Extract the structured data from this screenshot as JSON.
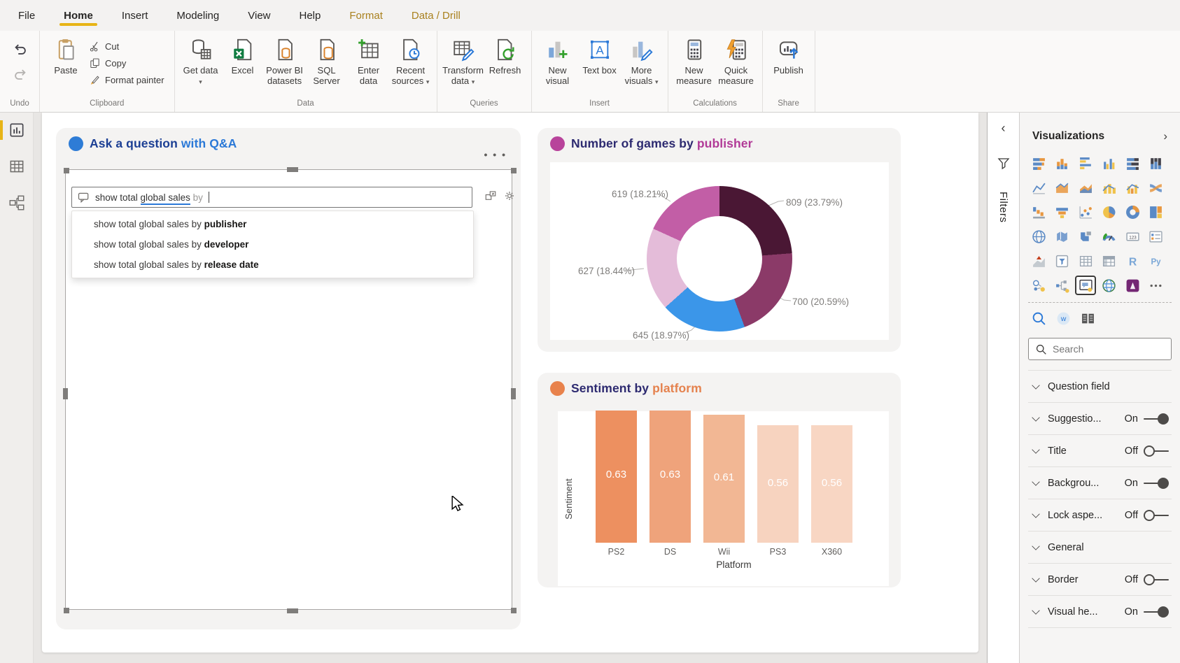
{
  "ribbon": {
    "active_tab": "Home",
    "tabs": [
      {
        "label": "File"
      },
      {
        "label": "Home",
        "active": true
      },
      {
        "label": "Insert"
      },
      {
        "label": "Modeling"
      },
      {
        "label": "View"
      },
      {
        "label": "Help"
      },
      {
        "label": "Format",
        "contextual": true
      },
      {
        "label": "Data / Drill",
        "contextual": true
      }
    ],
    "groups": [
      {
        "label": "Undo",
        "buttons": [
          {
            "name": "undo-button",
            "kind": "undo",
            "size": "icon"
          },
          {
            "name": "redo-button",
            "kind": "redo",
            "size": "icon"
          }
        ]
      },
      {
        "label": "Clipboard",
        "buttons": [
          {
            "name": "paste-button",
            "label": "Paste",
            "kind": "paste",
            "size": "big"
          },
          {
            "name": "cut-button",
            "label": "Cut",
            "kind": "cut",
            "size": "small"
          },
          {
            "name": "copy-button",
            "label": "Copy",
            "kind": "copy",
            "size": "small"
          },
          {
            "name": "format-painter-button",
            "label": "Format painter",
            "kind": "brush",
            "size": "small"
          }
        ]
      },
      {
        "label": "Data",
        "buttons": [
          {
            "name": "get-data-button",
            "label": "Get data",
            "kind": "getdata",
            "size": "big",
            "menu": true
          },
          {
            "name": "excel-button",
            "label": "Excel",
            "kind": "excel",
            "size": "big"
          },
          {
            "name": "power-bi-datasets-button",
            "label": "Power BI datasets",
            "kind": "pbids",
            "size": "big"
          },
          {
            "name": "sql-server-button",
            "label": "SQL Server",
            "kind": "sql",
            "size": "big"
          },
          {
            "name": "enter-data-button",
            "label": "Enter data",
            "kind": "enterdata",
            "size": "big"
          },
          {
            "name": "recent-sources-button",
            "label": "Recent sources",
            "kind": "recent",
            "size": "big",
            "menu": true
          }
        ]
      },
      {
        "label": "Queries",
        "buttons": [
          {
            "name": "transform-data-button",
            "label": "Transform data",
            "kind": "transform",
            "size": "big",
            "menu": true
          },
          {
            "name": "refresh-button",
            "label": "Refresh",
            "kind": "refresh",
            "size": "big"
          }
        ]
      },
      {
        "label": "Insert",
        "buttons": [
          {
            "name": "new-visual-button",
            "label": "New visual",
            "kind": "newvisual",
            "size": "big"
          },
          {
            "name": "text-box-button",
            "label": "Text box",
            "kind": "textbox",
            "size": "big"
          },
          {
            "name": "more-visuals-button",
            "label": "More visuals",
            "kind": "morevisuals",
            "size": "big",
            "menu": true
          }
        ]
      },
      {
        "label": "Calculations",
        "buttons": [
          {
            "name": "new-measure-button",
            "label": "New measure",
            "kind": "calc",
            "size": "big"
          },
          {
            "name": "quick-measure-button",
            "label": "Quick measure",
            "kind": "quickcalc",
            "size": "big"
          }
        ]
      },
      {
        "label": "Share",
        "buttons": [
          {
            "name": "publish-button",
            "label": "Publish",
            "kind": "publish",
            "size": "big"
          }
        ]
      }
    ]
  },
  "left_rail": [
    {
      "name": "report-view-button",
      "kind": "report",
      "active": true
    },
    {
      "name": "data-view-button",
      "kind": "dataview"
    },
    {
      "name": "model-view-button",
      "kind": "modelview"
    }
  ],
  "qna": {
    "title_main": "Ask a question",
    "title_accent": "with Q&A",
    "accent_color": "#2b79d7",
    "bullet_color": "#2e7cd6",
    "more_options": "• • •",
    "input_segments": [
      {
        "text": "show total ",
        "style": "normal"
      },
      {
        "text": "global sales",
        "style": "recognized"
      },
      {
        "text": " by ",
        "style": "pending"
      }
    ],
    "suggestions": [
      {
        "prefix": "show total global sales by ",
        "term": "publisher"
      },
      {
        "prefix": "show total global sales by ",
        "term": "developer"
      },
      {
        "prefix": "show total global sales by ",
        "term": "release date"
      }
    ]
  },
  "chart_data": [
    {
      "type": "donut",
      "title_main": "Number of games by",
      "title_accent": "publisher",
      "accent_color": "#b13a97",
      "bullet_color": "#b8439b",
      "values": [
        809,
        700,
        645,
        627,
        619
      ],
      "percents": [
        "23.79%",
        "20.59%",
        "18.97%",
        "18.44%",
        "18.21%"
      ],
      "label_format": "value (percent)",
      "colors": [
        "#4a1734",
        "#8b3a68",
        "#3b96e9",
        "#e4bcd9",
        "#c25ea6"
      ],
      "legend": "none"
    },
    {
      "type": "bar",
      "title_main": "Sentiment by",
      "title_accent": "platform",
      "accent_color": "#e5824e",
      "bullet_color": "#e8824c",
      "categories": [
        "PS2",
        "DS",
        "Wii",
        "PS3",
        "X360"
      ],
      "values": [
        0.63,
        0.63,
        0.61,
        0.56,
        0.56
      ],
      "colors": [
        "#ed9060",
        "#efa37b",
        "#f2b794",
        "#f7d3bf",
        "#f8d6c3"
      ],
      "xlabel": "Platform",
      "ylabel": "Sentiment",
      "ylim": [
        0,
        0.7
      ],
      "grid": false,
      "value_labels": true
    }
  ],
  "filters_panel": {
    "label": "Filters"
  },
  "viz_panel": {
    "title": "Visualizations",
    "search_placeholder": "Search",
    "grid_icons": [
      {
        "name": "stacked-bar-chart-icon",
        "kind": "bar_s"
      },
      {
        "name": "stacked-column-chart-icon",
        "kind": "col_s"
      },
      {
        "name": "clustered-bar-chart-icon",
        "kind": "bar_c"
      },
      {
        "name": "clustered-column-chart-icon",
        "kind": "col_c"
      },
      {
        "name": "100-stacked-bar-chart-icon",
        "kind": "bar_100"
      },
      {
        "name": "100-stacked-column-chart-icon",
        "kind": "col_100"
      },
      {
        "name": "line-chart-icon",
        "kind": "line"
      },
      {
        "name": "area-chart-icon",
        "kind": "area"
      },
      {
        "name": "stacked-area-chart-icon",
        "kind": "area_s"
      },
      {
        "name": "line-and-stacked-column-chart-icon",
        "kind": "combo1"
      },
      {
        "name": "line-and-clustered-column-chart-icon",
        "kind": "combo2"
      },
      {
        "name": "ribbon-chart-icon",
        "kind": "ribbonc"
      },
      {
        "name": "waterfall-chart-icon",
        "kind": "waterfall"
      },
      {
        "name": "funnel-chart-icon",
        "kind": "funnel"
      },
      {
        "name": "scatter-chart-icon",
        "kind": "scatter"
      },
      {
        "name": "pie-chart-icon",
        "kind": "pie"
      },
      {
        "name": "donut-chart-icon",
        "kind": "donutc"
      },
      {
        "name": "treemap-icon",
        "kind": "treemap"
      },
      {
        "name": "map-icon",
        "kind": "map"
      },
      {
        "name": "filled-map-icon",
        "kind": "map_filled"
      },
      {
        "name": "shape-map-icon",
        "kind": "map_shape"
      },
      {
        "name": "gauge-icon",
        "kind": "gauge"
      },
      {
        "name": "card-icon",
        "kind": "cardic"
      },
      {
        "name": "multi-row-card-icon",
        "kind": "card_multi"
      },
      {
        "name": "kpi-icon",
        "kind": "kpi"
      },
      {
        "name": "slicer-icon",
        "kind": "slicer"
      },
      {
        "name": "table-icon",
        "kind": "tableic"
      },
      {
        "name": "matrix-icon",
        "kind": "matrix"
      },
      {
        "name": "r-script-visual-icon",
        "kind": "r"
      },
      {
        "name": "python-visual-icon",
        "kind": "py"
      },
      {
        "name": "key-influencers-icon",
        "kind": "influencers"
      },
      {
        "name": "decomposition-tree-icon",
        "kind": "decomp"
      },
      {
        "name": "qna-visual-icon",
        "kind": "qna",
        "selected": true
      },
      {
        "name": "get-more-visuals-icon",
        "kind": "globe"
      },
      {
        "name": "power-apps-icon",
        "kind": "powerapps"
      },
      {
        "name": "more-visual-options-icon",
        "kind": "dots"
      }
    ],
    "extra_icons": [
      {
        "name": "search-visual-icon",
        "kind": "search_small"
      },
      {
        "name": "word-cloud-visual-icon",
        "kind": "w_small"
      },
      {
        "name": "paginated-report-icon",
        "kind": "paginated"
      }
    ],
    "sections": [
      {
        "label": "Question field",
        "toggle": null
      },
      {
        "label": "Suggestio...",
        "toggle": "On"
      },
      {
        "label": "Title",
        "toggle": "Off"
      },
      {
        "label": "Backgrou...",
        "toggle": "On"
      },
      {
        "label": "Lock aspe...",
        "toggle": "Off"
      },
      {
        "label": "General",
        "toggle": null
      },
      {
        "label": "Border",
        "toggle": "Off"
      },
      {
        "label": "Visual he...",
        "toggle": "On"
      }
    ]
  }
}
